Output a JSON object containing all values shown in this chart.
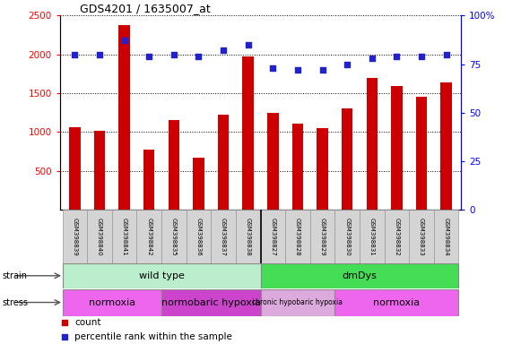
{
  "title": "GDS4201 / 1635007_at",
  "samples": [
    "GSM398839",
    "GSM398840",
    "GSM398841",
    "GSM398842",
    "GSM398835",
    "GSM398836",
    "GSM398837",
    "GSM398838",
    "GSM398827",
    "GSM398828",
    "GSM398829",
    "GSM398830",
    "GSM398831",
    "GSM398832",
    "GSM398833",
    "GSM398834"
  ],
  "counts": [
    1060,
    1020,
    2380,
    775,
    1160,
    670,
    1225,
    1970,
    1250,
    1105,
    1055,
    1310,
    1700,
    1590,
    1455,
    1640
  ],
  "percentile": [
    80,
    80,
    87,
    79,
    80,
    79,
    82,
    85,
    73,
    72,
    72,
    75,
    78,
    79,
    79,
    80
  ],
  "ylim_left": [
    0,
    2500
  ],
  "ylim_right": [
    0,
    100
  ],
  "yticks_left": [
    500,
    1000,
    1500,
    2000,
    2500
  ],
  "yticks_right": [
    0,
    25,
    50,
    75,
    100
  ],
  "bar_color": "#cc0000",
  "dot_color": "#2222cc",
  "strain_groups": [
    {
      "label": "wild type",
      "start": 0,
      "end": 8,
      "color": "#bbeecc"
    },
    {
      "label": "dmDys",
      "start": 8,
      "end": 16,
      "color": "#44dd55"
    }
  ],
  "stress_groups": [
    {
      "label": "normoxia",
      "start": 0,
      "end": 4,
      "color": "#ee66ee"
    },
    {
      "label": "normobaric hypoxia",
      "start": 4,
      "end": 8,
      "color": "#cc44cc"
    },
    {
      "label": "chronic hypobaric hypoxia",
      "start": 8,
      "end": 11,
      "color": "#ddaadd"
    },
    {
      "label": "normoxia",
      "start": 11,
      "end": 16,
      "color": "#ee66ee"
    }
  ]
}
